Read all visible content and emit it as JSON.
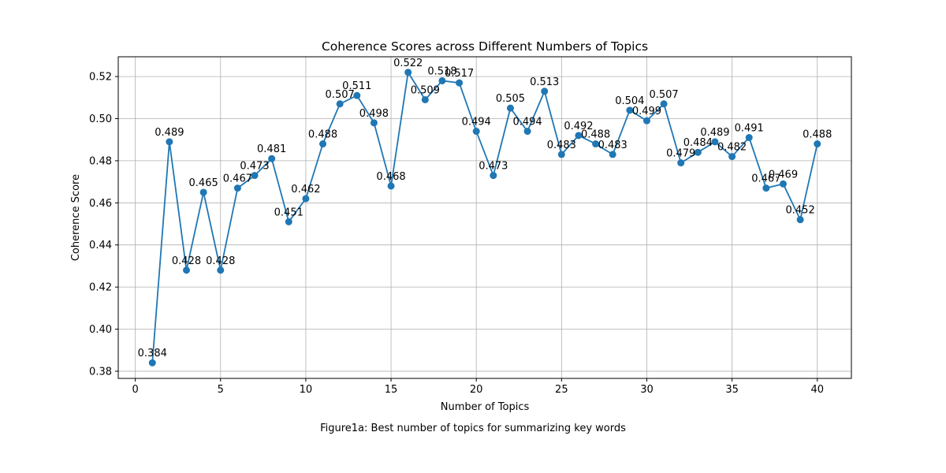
{
  "chart_data": {
    "type": "line",
    "title": "Coherence Scores across Different Numbers of Topics",
    "xlabel": "Number of Topics",
    "ylabel": "Coherence Score",
    "x": [
      1,
      2,
      3,
      4,
      5,
      6,
      7,
      8,
      9,
      10,
      11,
      12,
      13,
      14,
      15,
      16,
      17,
      18,
      19,
      20,
      21,
      22,
      23,
      24,
      25,
      26,
      27,
      28,
      29,
      30,
      31,
      32,
      33,
      34,
      35,
      36,
      37,
      38,
      39,
      40
    ],
    "values": [
      0.384,
      0.489,
      0.428,
      0.465,
      0.428,
      0.467,
      0.473,
      0.481,
      0.451,
      0.462,
      0.488,
      0.507,
      0.511,
      0.498,
      0.468,
      0.522,
      0.509,
      0.518,
      0.517,
      0.494,
      0.473,
      0.505,
      0.494,
      0.513,
      0.483,
      0.492,
      0.488,
      0.483,
      0.504,
      0.499,
      0.507,
      0.479,
      0.484,
      0.489,
      0.482,
      0.491,
      0.467,
      0.469,
      0.452,
      0.488
    ],
    "data_labels": [
      "0.384",
      "0.489",
      "0.428",
      "0.465",
      "0.428",
      "0.467",
      "0.473",
      "0.481",
      "0.451",
      "0.462",
      "0.488",
      "0.507",
      "0.511",
      "0.498",
      "0.468",
      "0.522",
      "0.509",
      "0.518",
      "0.517",
      "0.494",
      "0.473",
      "0.505",
      "0.494",
      "0.513",
      "0.483",
      "0.492",
      "0.488",
      "0.483",
      "0.504",
      "0.499",
      "0.507",
      "0.479",
      "0.484",
      "0.489",
      "0.482",
      "0.491",
      "0.467",
      "0.469",
      "0.452",
      "0.488"
    ],
    "xlim": [
      -1,
      42
    ],
    "ylim": [
      0.3766,
      0.5294
    ],
    "xticks": [
      0,
      5,
      10,
      15,
      20,
      25,
      30,
      35,
      40
    ],
    "xtick_labels": [
      "0",
      "5",
      "10",
      "15",
      "20",
      "25",
      "30",
      "35",
      "40"
    ],
    "yticks": [
      0.38,
      0.4,
      0.42,
      0.44,
      0.46,
      0.48,
      0.5,
      0.52
    ],
    "ytick_labels": [
      "0.38",
      "0.40",
      "0.42",
      "0.44",
      "0.46",
      "0.48",
      "0.50",
      "0.52"
    ],
    "grid": true,
    "line_color": "#1f77b4",
    "marker": "circle"
  },
  "caption": "Figure1a: Best number of topics for summarizing key words"
}
